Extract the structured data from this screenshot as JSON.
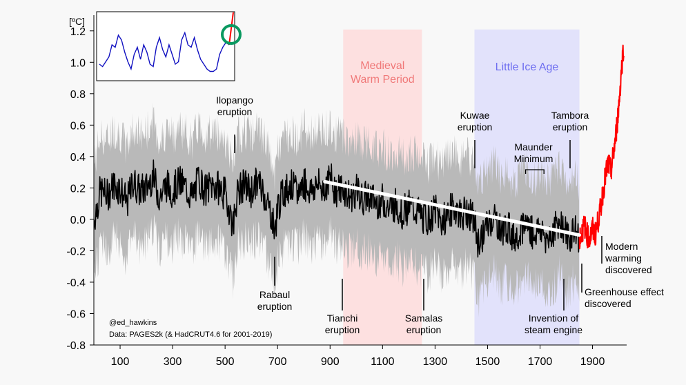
{
  "chart_data": {
    "type": "line",
    "yunit": "[ºC]",
    "xlim": [
      0,
      2030
    ],
    "ylim": [
      -0.8,
      1.3
    ],
    "x_ticks": [
      100,
      300,
      500,
      700,
      900,
      1100,
      1300,
      1500,
      1700,
      1900
    ],
    "y_ticks": [
      1.2,
      1.0,
      0.8,
      0.6,
      0.4,
      0.2,
      0.0,
      -0.2,
      -0.4,
      -0.6,
      -0.8
    ],
    "y_tick_labels": [
      "1.2",
      "1.0",
      "0.8",
      "0.6",
      "0.4",
      "0.2",
      "0.0",
      "-0.2",
      "-0.4",
      "-0.6",
      "-0.8"
    ],
    "periods": [
      {
        "label_lines": [
          "Medieval",
          "Warm Period"
        ],
        "start": 950,
        "end": 1250,
        "color": "#fde0e0",
        "text_color": "#f07878"
      },
      {
        "label_lines": [
          "Little Ice Age"
        ],
        "start": 1450,
        "end": 1850,
        "color": "#e2e2fb",
        "text_color": "#6e6ef0"
      }
    ],
    "series": [
      {
        "color": "#000000",
        "x": [
          1,
          25,
          50,
          75,
          100,
          125,
          150,
          175,
          200,
          225,
          250,
          275,
          300,
          325,
          350,
          375,
          400,
          425,
          450,
          475,
          500,
          510,
          520,
          530,
          540,
          550,
          575,
          600,
          625,
          650,
          675,
          690,
          700,
          725,
          750,
          775,
          800,
          825,
          850,
          875,
          900,
          925,
          950,
          975,
          1000,
          1025,
          1050,
          1075,
          1100,
          1125,
          1150,
          1175,
          1200,
          1225,
          1250,
          1275,
          1300,
          1325,
          1350,
          1375,
          1400,
          1425,
          1450,
          1465,
          1475,
          1500,
          1525,
          1550,
          1575,
          1600,
          1625,
          1650,
          1675,
          1700,
          1725,
          1750,
          1775,
          1800,
          1815,
          1825,
          1850
        ],
        "y": [
          0.0,
          0.18,
          0.15,
          0.22,
          0.2,
          0.1,
          0.24,
          0.18,
          0.2,
          0.28,
          0.14,
          0.22,
          0.18,
          0.24,
          0.2,
          0.14,
          0.26,
          0.18,
          0.22,
          0.2,
          0.16,
          0.1,
          0.05,
          -0.05,
          0.1,
          0.18,
          0.22,
          0.18,
          0.24,
          0.16,
          0.04,
          -0.08,
          0.08,
          0.18,
          0.22,
          0.16,
          0.24,
          0.18,
          0.22,
          0.2,
          0.26,
          0.18,
          0.2,
          0.14,
          0.18,
          0.12,
          0.16,
          0.1,
          0.12,
          0.06,
          0.1,
          0.04,
          0.08,
          0.06,
          0.02,
          0.0,
          0.06,
          -0.02,
          0.04,
          0.08,
          0.02,
          0.06,
          -0.02,
          -0.16,
          -0.12,
          -0.04,
          0.02,
          -0.08,
          -0.04,
          -0.12,
          -0.06,
          -0.02,
          -0.1,
          -0.06,
          -0.12,
          -0.08,
          0.0,
          -0.1,
          -0.14,
          -0.06,
          -0.12
        ]
      },
      {
        "color": "#ff0000",
        "x": [
          1850,
          1860,
          1870,
          1880,
          1890,
          1900,
          1910,
          1920,
          1930,
          1940,
          1950,
          1960,
          1970,
          1980,
          1990,
          2000,
          2010,
          2019
        ],
        "y": [
          -0.12,
          -0.08,
          -0.04,
          -0.1,
          -0.12,
          -0.06,
          -0.1,
          -0.02,
          0.06,
          0.18,
          0.28,
          0.36,
          0.3,
          0.42,
          0.55,
          0.72,
          0.95,
          1.12
        ]
      }
    ],
    "trend": {
      "color": "#ffffff",
      "x": [
        880,
        1850
      ],
      "y": [
        0.24,
        -0.1
      ]
    },
    "annotations": [
      {
        "lines": [
          "Ilopango",
          "eruption"
        ],
        "year": 540
      },
      {
        "lines": [
          "Rabaul",
          "eruption"
        ],
        "year": 683
      },
      {
        "lines": [
          "Tianchi",
          "eruption"
        ],
        "year": 946
      },
      {
        "lines": [
          "Samalas",
          "eruption"
        ],
        "year": 1257
      },
      {
        "lines": [
          "Kuwae",
          "eruption"
        ],
        "year": 1458
      },
      {
        "lines": [
          "Maunder",
          "Minimum"
        ],
        "year_start": 1645,
        "year_end": 1715
      },
      {
        "lines": [
          "Tambora",
          "eruption"
        ],
        "year": 1815
      },
      {
        "lines": [
          "Invention of",
          "steam engine"
        ],
        "year": 1800
      },
      {
        "lines": [
          "Greenhouse effect",
          "discovered"
        ],
        "year": 1856
      },
      {
        "lines": [
          "Modern",
          "warming",
          "discovered"
        ],
        "year": 1938
      }
    ],
    "credit_lines": [
      "@ed_hawkins",
      "Data: PAGES2k (& HadCRUT4.6 for 2001-2019)"
    ],
    "inset": {
      "color": "#1010c0",
      "red_color": "#ff0000",
      "circle_color": "#0a9960",
      "y": [
        0.2,
        0.15,
        0.25,
        0.35,
        0.6,
        0.55,
        0.8,
        0.7,
        0.45,
        0.25,
        0.1,
        0.4,
        0.55,
        0.3,
        0.6,
        0.45,
        0.2,
        0.15,
        0.55,
        0.75,
        0.5,
        0.35,
        0.6,
        0.4,
        0.2,
        0.25,
        0.7,
        0.85,
        0.6,
        0.55,
        0.75,
        0.5,
        0.3,
        0.2,
        0.1,
        0.05,
        0.05,
        0.1,
        0.4,
        0.55,
        0.65,
        0.6,
        1.0
      ]
    }
  }
}
